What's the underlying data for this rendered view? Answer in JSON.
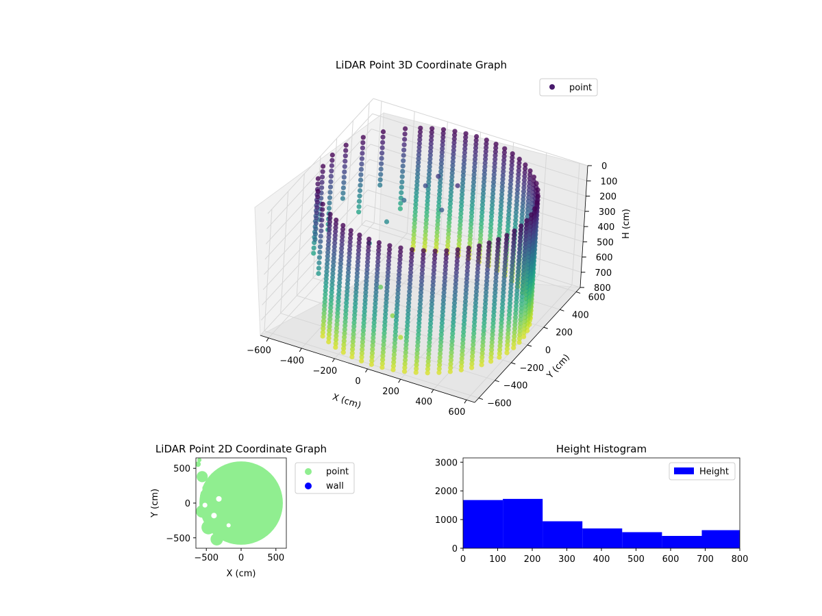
{
  "chart_data": [
    {
      "type": "scatter3d",
      "title": "LiDAR Point 3D Coordinate Graph",
      "xlabel": "X (cm)",
      "ylabel": "Y (cm)",
      "zlabel": "H (cm)",
      "xlim": [
        -650,
        650
      ],
      "ylim": [
        -650,
        650
      ],
      "zlim": [
        800,
        0
      ],
      "x_ticks": [
        "−600",
        "−400",
        "−200",
        "0",
        "200",
        "400",
        "600"
      ],
      "y_ticks": [
        "−600",
        "−400",
        "−200",
        "0",
        "200",
        "400",
        "600"
      ],
      "z_ticks": [
        "0",
        "100",
        "200",
        "300",
        "400",
        "500",
        "600",
        "700",
        "800"
      ],
      "grid": true,
      "legend": {
        "placement": "top-right",
        "entries": [
          {
            "label": "point",
            "color": "#481a6c"
          }
        ]
      },
      "colormap": "viridis",
      "color_by": "height",
      "series": [
        {
          "name": "point",
          "description_of_shape": "cylindrical wall of radius ~600 cm around the origin, open toward negative X",
          "wall_radius": 600,
          "wall_height_range": [
            0,
            800
          ],
          "wall_open_angle_deg": [
            120,
            230
          ],
          "extra_points": [
            {
              "x": -100,
              "y": 350,
              "h": 150
            },
            {
              "x": -150,
              "y": 300,
              "h": 200
            },
            {
              "x": 0,
              "y": 200,
              "h": 250
            },
            {
              "x": -250,
              "y": 250,
              "h": 300
            },
            {
              "x": 50,
              "y": 280,
              "h": 120
            },
            {
              "x": -300,
              "y": 150,
              "h": 400
            },
            {
              "x": -350,
              "y": 50,
              "h": 500
            },
            {
              "x": -200,
              "y": -100,
              "h": 650
            },
            {
              "x": -50,
              "y": -250,
              "h": 700
            },
            {
              "x": 50,
              "y": -350,
              "h": 750
            }
          ]
        }
      ]
    },
    {
      "type": "scatter",
      "title": "LiDAR Point 2D Coordinate Graph",
      "xlabel": "X (cm)",
      "ylabel": "Y (cm)",
      "xlim": [
        -650,
        650
      ],
      "ylim": [
        -650,
        650
      ],
      "x_ticks": [
        "−500",
        "0",
        "500"
      ],
      "y_ticks": [
        "−500",
        "0",
        "500"
      ],
      "legend": {
        "placement": "outside-right",
        "entries": [
          {
            "label": "point",
            "color": "#90ee90"
          },
          {
            "label": "wall",
            "color": "#0000ff"
          }
        ]
      },
      "series": [
        {
          "name": "point",
          "color": "#90ee90",
          "shape": "filled disc of radius ~600 cm centered at origin, ragged on the left"
        },
        {
          "name": "wall",
          "color": "#0000ff",
          "values": []
        }
      ]
    },
    {
      "type": "bar",
      "title": "Height Histogram",
      "xlabel": "",
      "ylabel": "",
      "bin_edges": [
        0,
        115,
        230,
        345,
        460,
        575,
        690,
        800
      ],
      "values": [
        1680,
        1720,
        940,
        690,
        560,
        430,
        630
      ],
      "xlim": [
        0,
        800
      ],
      "ylim": [
        0,
        3150
      ],
      "x_ticks": [
        "0",
        "100",
        "200",
        "300",
        "400",
        "500",
        "600",
        "700",
        "800"
      ],
      "y_ticks": [
        "0",
        "1000",
        "2000",
        "3000"
      ],
      "legend": {
        "placement": "top-right",
        "entries": [
          {
            "label": "Height",
            "color": "#0000ff"
          }
        ]
      },
      "series": [
        {
          "name": "Height",
          "color": "#0000ff"
        }
      ]
    }
  ]
}
